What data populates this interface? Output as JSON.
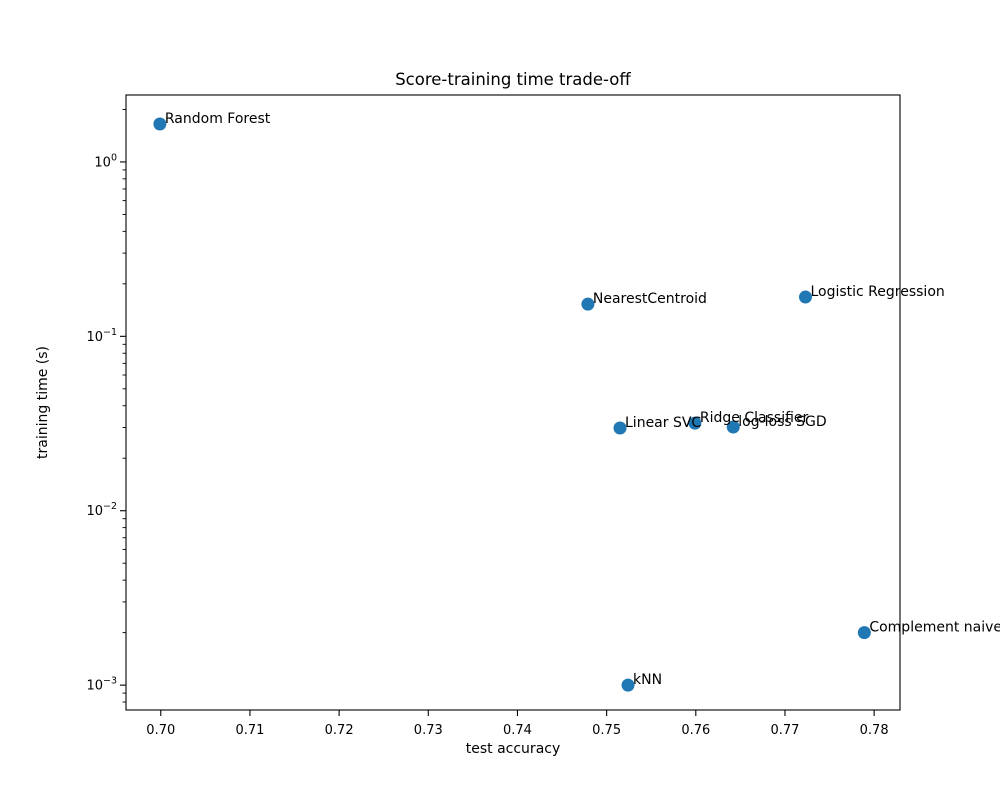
{
  "figure": {
    "background": "#ffffff"
  },
  "chart_data": {
    "type": "scatter",
    "title": "Score-training time trade-off",
    "xlabel": "test accuracy",
    "ylabel": "training time (s)",
    "grid": false,
    "legend_position": "none",
    "marker_color": "#1f77b4",
    "marker_radius": 6.5,
    "x_axis": {
      "scale": "linear",
      "min": 0.6961,
      "max": 0.7829,
      "ticks": [
        0.7,
        0.71,
        0.72,
        0.73,
        0.74,
        0.75,
        0.76,
        0.77,
        0.78
      ],
      "tick_decimals": 2
    },
    "y_axis": {
      "scale": "log",
      "min": 0.00072,
      "max": 2.42,
      "tick_exponents": [
        0,
        -1,
        -2,
        -3
      ]
    },
    "points": [
      {
        "label": "Random Forest",
        "accuracy": 0.6999,
        "train_time": 1.65
      },
      {
        "label": "NearestCentroid",
        "accuracy": 0.7479,
        "train_time": 0.153
      },
      {
        "label": "Logistic Regression",
        "accuracy": 0.7723,
        "train_time": 0.168
      },
      {
        "label": "Linear SVC",
        "accuracy": 0.7515,
        "train_time": 0.0298
      },
      {
        "label": "Ridge Classifier",
        "accuracy": 0.7599,
        "train_time": 0.0318
      },
      {
        "label": "log-loss SGD",
        "accuracy": 0.7642,
        "train_time": 0.0302
      },
      {
        "label": "Complement naive",
        "accuracy": 0.7789,
        "train_time": 0.002
      },
      {
        "label": "kNN",
        "accuracy": 0.7524,
        "train_time": 0.001
      }
    ]
  }
}
